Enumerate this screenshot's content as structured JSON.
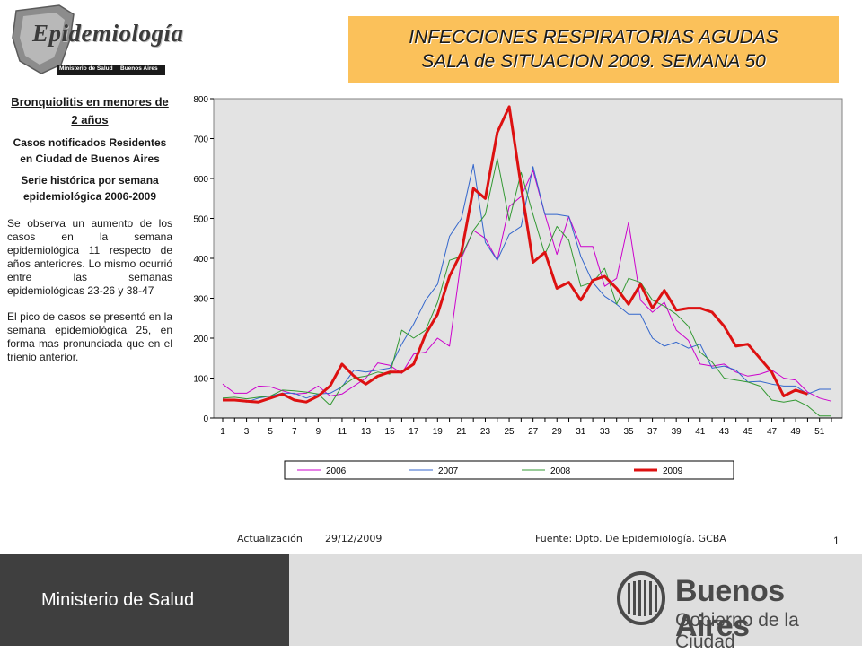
{
  "logo": {
    "title": "Epidemiología",
    "left_label": "Ministerio de Salud",
    "right_label": "Buenos Aires"
  },
  "title": {
    "line1": "INFECCIONES RESPIRATORIAS AGUDAS",
    "line2": "SALA de SITUACION 2009. SEMANA 50"
  },
  "left": {
    "heading": "Bronquiolitis en menores de 2 años",
    "sub1": "Casos notificados Residentes en Ciudad de Buenos Aires",
    "sub2": "Serie histórica por semana epidemiológica 2006-2009",
    "para1": "Se observa un aumento de los casos en la semana epidemiológica 11 respecto de años anteriores. Lo mismo ocurrió entre las semanas epidemiológicas 23-26 y 38-47",
    "para2": "El pico de casos se presentó en la semana epidemiológica 25, en forma mas pronunciada que en el trienio anterior."
  },
  "footer": {
    "update_label": "Actualización",
    "update_date": "29/12/2009",
    "source": "Fuente: Dpto. De Epidemiología.  GCBA",
    "page": "1"
  },
  "bottom": {
    "ministerio": "Ministerio de Salud",
    "ba_title": "Buenos Aires",
    "ba_sub": "Gobierno de la Ciudad"
  },
  "colors": {
    "title_bg": "#fbc15a",
    "plot_bg": "#e3e3e3",
    "bottom_dark": "#3f3f3f"
  },
  "chart_data": {
    "type": "line",
    "xlim": [
      1,
      52
    ],
    "ylim": [
      0,
      800
    ],
    "yticks": [
      0,
      100,
      200,
      300,
      400,
      500,
      600,
      700,
      800
    ],
    "xtick_labels": [
      1,
      3,
      5,
      7,
      9,
      11,
      13,
      15,
      17,
      19,
      21,
      23,
      25,
      27,
      29,
      31,
      33,
      35,
      37,
      39,
      41,
      43,
      45,
      47,
      49,
      51
    ],
    "legend_position": "bottom",
    "grid": false,
    "series": [
      {
        "name": "2006",
        "color": "#cc00cc",
        "width": 1,
        "values": [
          85,
          62,
          62,
          80,
          78,
          68,
          60,
          62,
          80,
          55,
          60,
          80,
          100,
          138,
          132,
          112,
          160,
          165,
          200,
          180,
          400,
          470,
          450,
          395,
          530,
          555,
          620,
          510,
          410,
          505,
          430,
          430,
          330,
          350,
          490,
          295,
          265,
          290,
          220,
          195,
          135,
          130,
          135,
          115,
          105,
          110,
          120,
          100,
          95,
          65,
          50,
          42
        ]
      },
      {
        "name": "2007",
        "color": "#3366cc",
        "width": 1,
        "values": [
          48,
          45,
          40,
          50,
          55,
          62,
          62,
          50,
          60,
          62,
          78,
          120,
          115,
          120,
          125,
          185,
          235,
          295,
          335,
          455,
          500,
          635,
          440,
          395,
          460,
          480,
          630,
          510,
          510,
          505,
          405,
          340,
          305,
          285,
          260,
          260,
          200,
          180,
          190,
          175,
          185,
          125,
          130,
          120,
          90,
          92,
          85,
          80,
          80,
          60,
          72,
          72
        ]
      },
      {
        "name": "2008",
        "color": "#339933",
        "width": 1,
        "values": [
          50,
          52,
          48,
          52,
          55,
          70,
          68,
          65,
          60,
          32,
          80,
          100,
          105,
          115,
          110,
          220,
          200,
          220,
          290,
          395,
          405,
          470,
          510,
          650,
          495,
          615,
          510,
          410,
          480,
          445,
          330,
          340,
          375,
          285,
          350,
          340,
          295,
          280,
          260,
          230,
          165,
          140,
          100,
          95,
          90,
          80,
          45,
          40,
          45,
          30,
          5,
          5
        ]
      },
      {
        "name": "2009",
        "color": "#dd1111",
        "width": 3,
        "values": [
          45,
          45,
          42,
          40,
          50,
          60,
          45,
          40,
          55,
          80,
          135,
          105,
          85,
          105,
          115,
          115,
          135,
          210,
          260,
          355,
          415,
          575,
          550,
          715,
          780,
          580,
          390,
          415,
          325,
          340,
          295,
          345,
          355,
          325,
          285,
          335,
          275,
          320,
          270,
          275,
          275,
          265,
          230,
          180,
          185,
          150,
          115,
          55,
          70,
          60
        ]
      }
    ]
  }
}
